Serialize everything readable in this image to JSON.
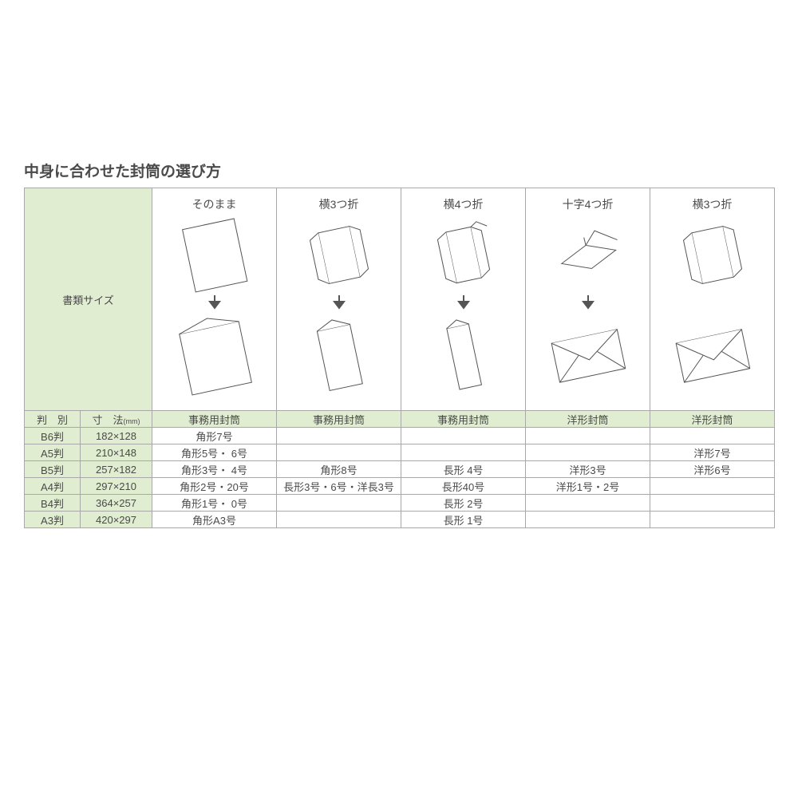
{
  "title": "中身に合わせた封筒の選び方",
  "doc_size_label": "書類サイズ",
  "header": {
    "col0a": "判　別",
    "col0b": "寸　法",
    "col0b_unit": "(mm)"
  },
  "folds": [
    {
      "label": "そのまま",
      "envelope_type": "事務用封筒"
    },
    {
      "label": "横3つ折",
      "envelope_type": "事務用封筒"
    },
    {
      "label": "横4つ折",
      "envelope_type": "事務用封筒"
    },
    {
      "label": "十字4つ折",
      "envelope_type": "洋形封筒"
    },
    {
      "label": "横3つ折",
      "envelope_type": "洋形封筒"
    }
  ],
  "rows": [
    {
      "size": "B6判",
      "dim": "182×128",
      "c": [
        "角形7号",
        "",
        "",
        "",
        ""
      ]
    },
    {
      "size": "A5判",
      "dim": "210×148",
      "c": [
        "角形5号・ 6号",
        "",
        "",
        "",
        "洋形7号"
      ]
    },
    {
      "size": "B5判",
      "dim": "257×182",
      "c": [
        "角形3号・ 4号",
        "角形8号",
        "長形  4号",
        "洋形3号",
        "洋形6号"
      ]
    },
    {
      "size": "A4判",
      "dim": "297×210",
      "c": [
        "角形2号・20号",
        "長形3号・6号・洋長3号",
        "長形40号",
        "洋形1号・2号",
        ""
      ]
    },
    {
      "size": "B4判",
      "dim": "364×257",
      "c": [
        "角形1号・ 0号",
        "",
        "長形  2号",
        "",
        ""
      ]
    },
    {
      "size": "A3判",
      "dim": "420×297",
      "c": [
        "角形A3号",
        "",
        "長形  1号",
        "",
        ""
      ]
    }
  ],
  "colors": {
    "header_bg": "#e0edd0",
    "border": "#a8a8a8",
    "stroke": "#555555",
    "arrow": "#555555"
  }
}
